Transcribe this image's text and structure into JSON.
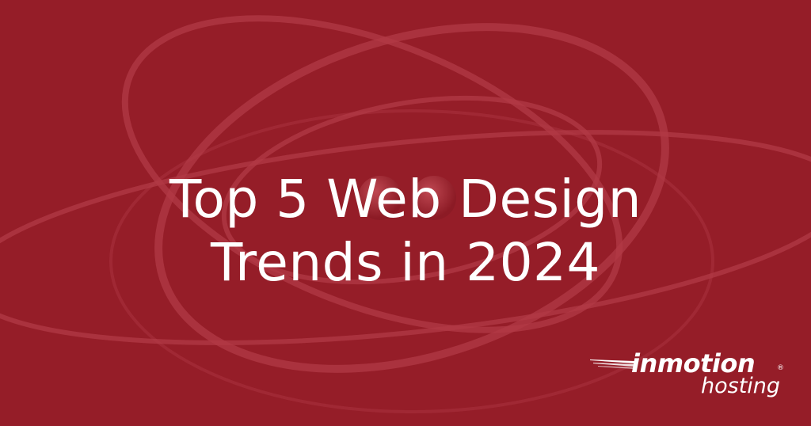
{
  "title": {
    "line1": "Top 5 Web Design",
    "line2": "Trends in 2024"
  },
  "logo": {
    "brand": "inmotion",
    "registered": "®",
    "sub": "hosting"
  },
  "colors": {
    "background": "#951d28",
    "text": "#ffffff"
  }
}
